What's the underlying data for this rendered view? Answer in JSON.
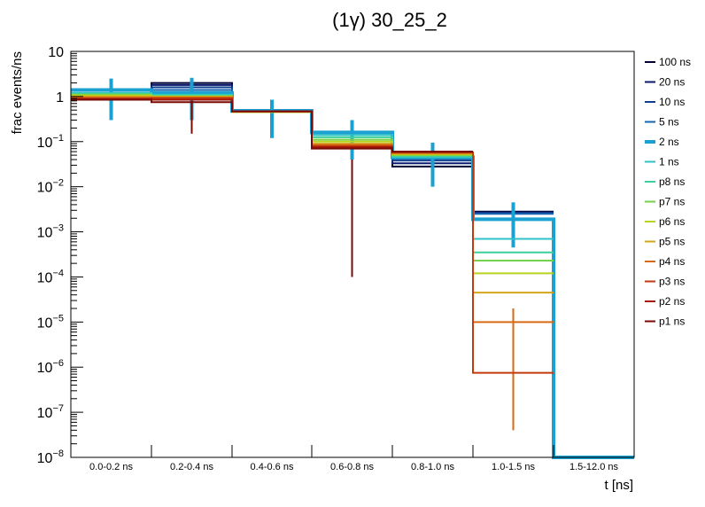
{
  "chart_data": {
    "type": "line",
    "plot_style": "step histogram",
    "title": "(1γ) 30_25_2",
    "xlabel": "t [ns]",
    "ylabel": "frac events/ns",
    "yscale": "log",
    "ylim": [
      1e-08,
      10
    ],
    "categories": [
      "0.0-0.2 ns",
      "0.2-0.4 ns",
      "0.4-0.6 ns",
      "0.6-0.8 ns",
      "0.8-1.0 ns",
      "1.0-1.5 ns",
      "1.5-12.0 ns"
    ],
    "ytick_labels": [
      {
        "value": 10,
        "base": "10",
        "exp": ""
      },
      {
        "value": 1,
        "base": "1",
        "exp": ""
      },
      {
        "value": 0.1,
        "base": "10",
        "exp": "−1"
      },
      {
        "value": 0.01,
        "base": "10",
        "exp": "−2"
      },
      {
        "value": 0.001,
        "base": "10",
        "exp": "−3"
      },
      {
        "value": 0.0001,
        "base": "10",
        "exp": "−4"
      },
      {
        "value": 1e-05,
        "base": "10",
        "exp": "−5"
      },
      {
        "value": 1e-06,
        "base": "10",
        "exp": "−6"
      },
      {
        "value": 1e-07,
        "base": "10",
        "exp": "−7"
      },
      {
        "value": 1e-08,
        "base": "10",
        "exp": "−8"
      }
    ],
    "legend_position": "right",
    "series": [
      {
        "name": "100 ns",
        "color": "#000033",
        "values": [
          0.85,
          2.0,
          0.5,
          0.16,
          0.028,
          0.0028,
          null
        ]
      },
      {
        "name": "20 ns",
        "color": "#0a1a6e",
        "values": [
          0.95,
          1.8,
          0.5,
          0.16,
          0.033,
          0.0027,
          null
        ]
      },
      {
        "name": "10 ns",
        "color": "#0e3f8f",
        "values": [
          1.05,
          1.6,
          0.5,
          0.16,
          0.038,
          0.0026,
          null
        ]
      },
      {
        "name": "5 ns",
        "color": "#1565b0",
        "values": [
          1.15,
          1.4,
          0.5,
          0.16,
          0.042,
          0.0025,
          null
        ]
      },
      {
        "name": "2 ns",
        "color": "#1aa1d1",
        "thick": true,
        "values": [
          1.4,
          1.2,
          0.48,
          0.16,
          0.045,
          0.0019,
          1e-08
        ],
        "errors": [
          [
            0.3,
            2.5
          ],
          [
            0.3,
            2.6
          ],
          [
            0.12,
            0.85
          ],
          [
            0.04,
            0.3
          ],
          [
            0.01,
            0.095
          ],
          [
            0.00045,
            0.0045
          ]
        ]
      },
      {
        "name": "1 ns",
        "color": "#2fc2c9",
        "values": [
          1.2,
          1.1,
          0.47,
          0.14,
          0.045,
          0.0007,
          null
        ]
      },
      {
        "name": "p8 ns",
        "color": "#3ccf9a",
        "values": [
          1.15,
          1.05,
          0.46,
          0.125,
          0.048,
          0.00035,
          null
        ]
      },
      {
        "name": "p7 ns",
        "color": "#76d14a",
        "values": [
          1.1,
          1.02,
          0.45,
          0.11,
          0.05,
          0.00023,
          null
        ]
      },
      {
        "name": "p6 ns",
        "color": "#b8d21f",
        "values": [
          1.05,
          1.0,
          0.45,
          0.1,
          0.052,
          0.00012,
          null
        ]
      },
      {
        "name": "p5 ns",
        "color": "#d2a51a",
        "values": [
          1.0,
          0.98,
          0.46,
          0.09,
          0.054,
          4.5e-05,
          null
        ]
      },
      {
        "name": "p4 ns",
        "color": "#d66a12",
        "values": [
          0.95,
          0.95,
          0.46,
          0.085,
          0.056,
          1e-05,
          null
        ],
        "errors": [
          null,
          null,
          null,
          null,
          null,
          [
            4e-08,
            2e-05
          ]
        ]
      },
      {
        "name": "p3 ns",
        "color": "#c23a0e",
        "values": [
          0.9,
          0.92,
          0.47,
          0.08,
          0.058,
          7.5e-07,
          null
        ]
      },
      {
        "name": "p2 ns",
        "color": "#a3170a",
        "values": [
          0.88,
          0.85,
          0.47,
          0.075,
          0.06,
          null,
          null
        ]
      },
      {
        "name": "p1 ns",
        "color": "#7a0a06",
        "values": [
          0.85,
          0.75,
          0.47,
          0.07,
          0.06,
          null,
          null
        ],
        "errors": [
          null,
          [
            0.15,
            0.8
          ],
          null,
          [
            0.0001,
            0.04
          ],
          null,
          null
        ]
      }
    ]
  }
}
